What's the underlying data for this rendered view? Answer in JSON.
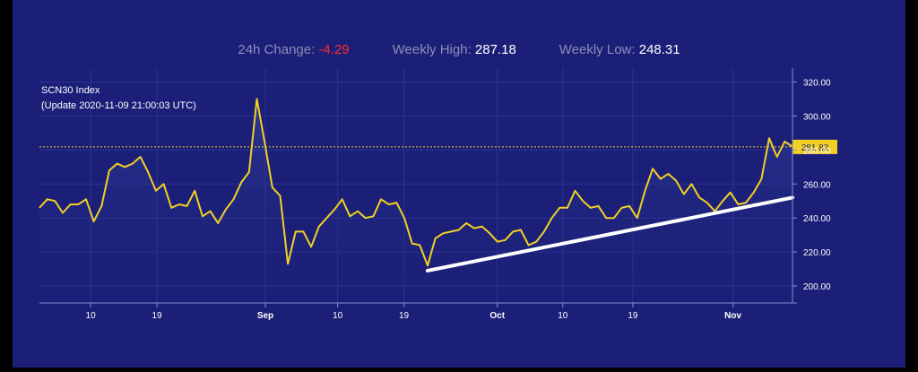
{
  "stats": {
    "change_label": "24h Change:",
    "change_value": "-4.29",
    "high_label": "Weekly High:",
    "high_value": "287.18",
    "low_label": "Weekly Low:",
    "low_value": "248.31"
  },
  "colors": {
    "background": "#1b1f78",
    "line": "#f2d024",
    "trendline": "#ffffff",
    "negative": "#ff2d2d",
    "current_badge": "#f2d024"
  },
  "chart_data": {
    "type": "line",
    "title": "SCN30 Index",
    "subtitle": "(Update 2020-11-09 21:00:03 UTC)",
    "grid": true,
    "ylim": [
      190,
      325
    ],
    "y_ticks": [
      "200.00",
      "220.00",
      "240.00",
      "260.00",
      "280.00",
      "300.00",
      "320.00"
    ],
    "x_ticks": [
      "10",
      "19",
      "Sep",
      "10",
      "19",
      "Oct",
      "10",
      "19",
      "Nov"
    ],
    "current_value_label": "281.82",
    "current_value": 281.82,
    "series": [
      {
        "values": [
          246,
          251,
          250,
          243,
          248,
          248,
          251,
          238,
          247,
          268,
          272,
          270,
          272,
          276,
          267,
          256,
          260,
          246,
          248,
          247,
          256,
          241,
          244,
          237,
          245,
          251,
          261,
          267,
          310,
          285,
          258,
          253,
          213,
          232,
          232,
          223,
          235,
          240,
          245,
          251,
          241,
          244,
          240,
          241,
          251,
          248,
          249,
          240,
          225,
          224,
          212,
          228,
          231,
          232,
          233,
          237,
          234,
          235,
          231,
          226,
          227,
          232,
          233,
          224,
          226,
          232,
          240,
          246,
          246,
          256,
          250,
          246,
          247,
          240,
          240,
          246,
          247,
          240,
          256,
          269,
          263,
          266,
          262,
          254,
          260,
          252,
          249,
          244,
          250,
          255,
          248,
          249,
          255,
          263,
          287,
          276,
          285,
          282
        ]
      }
    ],
    "trendline": {
      "start_value": 209,
      "end_value": 252
    }
  }
}
